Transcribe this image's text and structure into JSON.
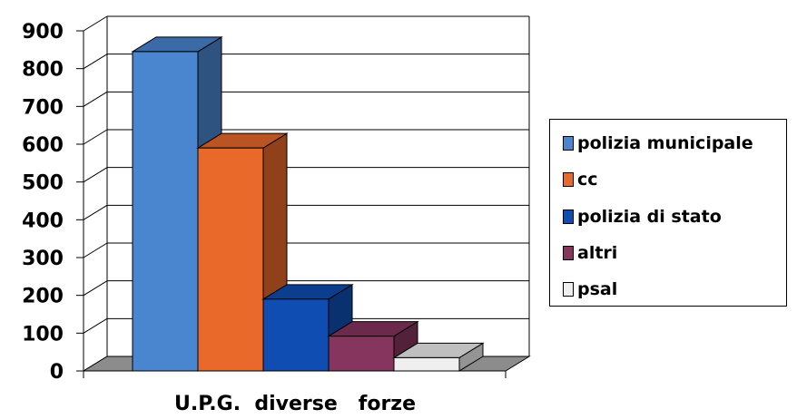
{
  "chart_data": {
    "type": "bar",
    "style": "3d-clustered",
    "categories": [
      "U.P.G.  diverse   forze"
    ],
    "series": [
      {
        "name": "polizia municipale",
        "values": [
          845
        ],
        "color": "#4A86CF"
      },
      {
        "name": "cc",
        "values": [
          590
        ],
        "color": "#E8692A"
      },
      {
        "name": "polizia di stato",
        "values": [
          190
        ],
        "color": "#0F4DB3"
      },
      {
        "name": "altri",
        "values": [
          92
        ],
        "color": "#86355E"
      },
      {
        "name": "psal",
        "values": [
          35
        ],
        "color": "#EFEFEF"
      }
    ],
    "yticks": [
      "0",
      "100",
      "200",
      "300",
      "400",
      "500",
      "600",
      "700",
      "800",
      "900"
    ],
    "ylim": [
      0,
      900
    ],
    "grid": true,
    "legend_position": "right",
    "title": "",
    "xlabel": "",
    "ylabel": ""
  }
}
